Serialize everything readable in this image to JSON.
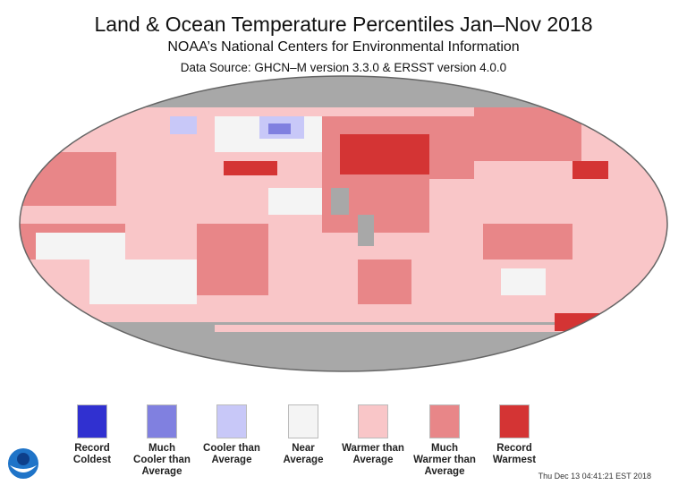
{
  "title": "Land & Ocean Temperature Percentiles Jan–Nov 2018",
  "subtitle": "NOAA’s National Centers for Environmental Information",
  "source": "Data Source: GHCN–M version 3.3.0 & ERSST version 4.0.0",
  "colors": {
    "record_coldest": "#3030d0",
    "much_cooler": "#8080e0",
    "cooler": "#c8c8f8",
    "near": "#f4f4f4",
    "warmer": "#f9c6c8",
    "much_warmer": "#e88688",
    "record_warmest": "#d43434",
    "no_data": "#a8a8a8"
  },
  "legend": [
    {
      "label1": "Record",
      "label2": "Coldest",
      "label3": "",
      "color": "#3030d0"
    },
    {
      "label1": "Much",
      "label2": "Cooler than",
      "label3": "Average",
      "color": "#8080e0"
    },
    {
      "label1": "Cooler than",
      "label2": "Average",
      "label3": "",
      "color": "#c8c8f8"
    },
    {
      "label1": "Near",
      "label2": "Average",
      "label3": "",
      "color": "#f4f4f4"
    },
    {
      "label1": "Warmer than",
      "label2": "Average",
      "label3": "",
      "color": "#f9c6c8"
    },
    {
      "label1": "Much",
      "label2": "Warmer than",
      "label3": "Average",
      "color": "#e88688"
    },
    {
      "label1": "Record",
      "label2": "Warmest",
      "label3": "",
      "color": "#d43434"
    }
  ],
  "timestamp": "Thu Dec 13 04:41:21 EST 2018",
  "logo_text": "NOAA"
}
